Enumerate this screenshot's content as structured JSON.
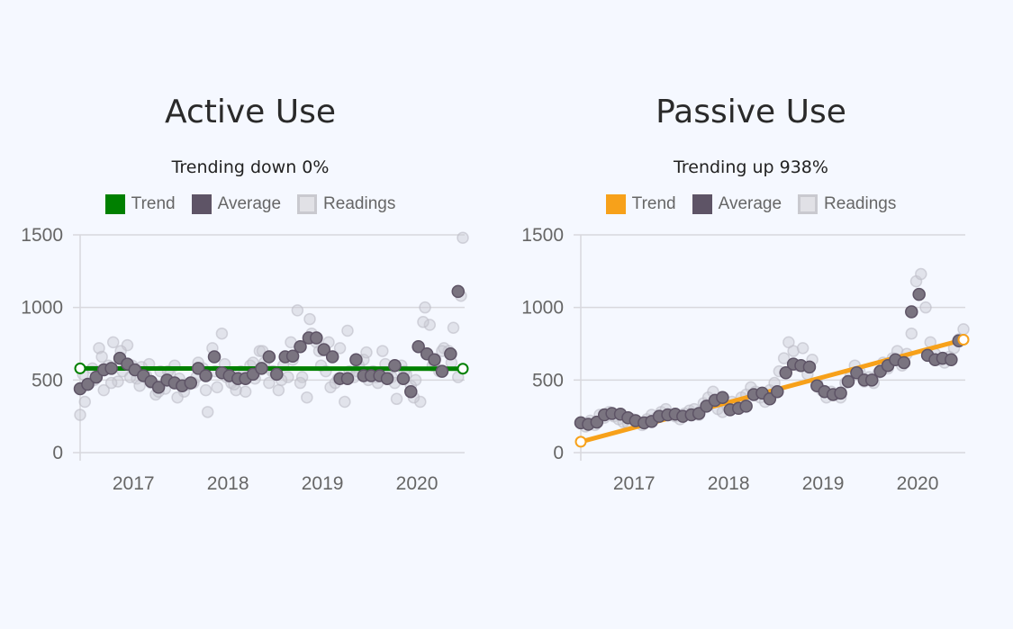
{
  "colors": {
    "average": "#5e5466",
    "readings": "#bdbdc6",
    "grid": "#d8d8dd",
    "background": "#f5f8ff"
  },
  "chart_data": [
    {
      "type": "scatter",
      "title": "Active Use",
      "subtitle": "Trending down 0%",
      "legend": [
        "Trend",
        "Average",
        "Readings"
      ],
      "trend_color": "#008000",
      "ylim": [
        0,
        1500
      ],
      "y_ticks": [
        "0",
        "500",
        "1000",
        "1500"
      ],
      "x_range": [
        2016.55,
        2020.6
      ],
      "x_ticks": [
        {
          "value": 2017,
          "label": "2017"
        },
        {
          "value": 2018,
          "label": "2018"
        },
        {
          "value": 2019,
          "label": "2019"
        },
        {
          "value": 2020,
          "label": "2020"
        }
      ],
      "trend": {
        "x": [
          2016.55,
          2020.6
        ],
        "y": [
          580,
          578
        ]
      },
      "average": {
        "x": [
          2016.55,
          2016.63,
          2016.72,
          2016.8,
          2016.88,
          2016.97,
          2017.05,
          2017.13,
          2017.22,
          2017.3,
          2017.38,
          2017.47,
          2017.55,
          2017.63,
          2017.72,
          2017.8,
          2017.88,
          2017.97,
          2018.05,
          2018.13,
          2018.22,
          2018.3,
          2018.38,
          2018.47,
          2018.55,
          2018.63,
          2018.72,
          2018.8,
          2018.88,
          2018.97,
          2019.05,
          2019.13,
          2019.22,
          2019.3,
          2019.38,
          2019.47,
          2019.55,
          2019.63,
          2019.72,
          2019.8,
          2019.88,
          2019.97,
          2020.05,
          2020.13,
          2020.22,
          2020.3,
          2020.38,
          2020.47,
          2020.55
        ],
        "y": [
          440,
          470,
          520,
          570,
          580,
          650,
          610,
          570,
          530,
          490,
          450,
          500,
          480,
          460,
          480,
          580,
          530,
          660,
          550,
          530,
          510,
          510,
          540,
          580,
          660,
          540,
          660,
          665,
          730,
          790,
          790,
          710,
          660,
          510,
          510,
          640,
          530,
          530,
          530,
          510,
          600,
          510,
          420,
          730,
          680,
          640,
          560,
          680,
          1110
        ]
      },
      "readings": {
        "x": [
          2016.55,
          2016.6,
          2016.65,
          2016.7,
          2016.75,
          2016.8,
          2016.85,
          2016.9,
          2016.95,
          2017.0,
          2017.05,
          2017.1,
          2017.15,
          2017.2,
          2017.25,
          2017.3,
          2017.35,
          2017.4,
          2017.45,
          2017.5,
          2017.55,
          2017.6,
          2017.65,
          2017.7,
          2017.75,
          2017.8,
          2017.85,
          2017.9,
          2017.95,
          2018.0,
          2018.05,
          2018.1,
          2018.15,
          2018.2,
          2018.25,
          2018.3,
          2018.35,
          2018.4,
          2018.45,
          2018.5,
          2018.55,
          2018.6,
          2018.65,
          2018.7,
          2018.75,
          2018.8,
          2018.85,
          2018.9,
          2018.95,
          2019.0,
          2019.05,
          2019.1,
          2019.15,
          2019.2,
          2019.25,
          2019.3,
          2019.35,
          2019.4,
          2019.45,
          2019.5,
          2019.55,
          2019.6,
          2019.65,
          2019.7,
          2019.75,
          2019.8,
          2019.85,
          2019.9,
          2019.95,
          2020.0,
          2020.05,
          2020.1,
          2020.15,
          2020.2,
          2020.25,
          2020.3,
          2020.35,
          2020.4,
          2020.45,
          2020.5,
          2020.55,
          2020.6,
          2016.58,
          2016.68,
          2016.78,
          2016.88,
          2016.98,
          2017.08,
          2017.18,
          2017.28,
          2017.38,
          2017.48,
          2017.58,
          2017.68,
          2017.78,
          2017.88,
          2017.98,
          2018.08,
          2018.18,
          2018.28,
          2018.38,
          2018.48,
          2018.58,
          2018.68,
          2018.78,
          2018.88,
          2018.98,
          2019.08,
          2019.18,
          2019.28,
          2019.38,
          2019.48,
          2019.58,
          2019.68,
          2019.78,
          2019.88,
          2019.98,
          2020.08,
          2020.18,
          2020.28,
          2020.38,
          2020.48,
          2020.58
        ],
        "y": [
          260,
          350,
          480,
          500,
          720,
          430,
          600,
          760,
          490,
          560,
          740,
          600,
          510,
          590,
          530,
          480,
          400,
          560,
          440,
          540,
          600,
          510,
          420,
          470,
          480,
          620,
          580,
          280,
          720,
          450,
          820,
          520,
          480,
          430,
          560,
          420,
          600,
          510,
          700,
          620,
          480,
          560,
          430,
          600,
          520,
          640,
          980,
          520,
          380,
          820,
          760,
          600,
          560,
          450,
          480,
          720,
          350,
          560,
          520,
          600,
          640,
          500,
          560,
          480,
          700,
          540,
          520,
          370,
          600,
          540,
          460,
          500,
          350,
          1000,
          880,
          620,
          560,
          720,
          700,
          860,
          520,
          1480,
          540,
          580,
          660,
          480,
          700,
          520,
          460,
          610,
          420,
          560,
          380,
          470,
          520,
          430,
          560,
          610,
          470,
          540,
          620,
          700,
          560,
          500,
          760,
          480,
          920,
          700,
          760,
          510,
          840,
          560,
          690,
          520,
          610,
          480,
          560,
          380,
          900,
          600,
          700,
          620,
          1080
        ]
      }
    },
    {
      "type": "scatter",
      "title": "Passive Use",
      "subtitle": "Trending up 938%",
      "legend": [
        "Trend",
        "Average",
        "Readings"
      ],
      "trend_color": "#f7a11a",
      "ylim": [
        0,
        1500
      ],
      "y_ticks": [
        "0",
        "500",
        "1000",
        "1500"
      ],
      "x_range": [
        2016.55,
        2020.6
      ],
      "x_ticks": [
        {
          "value": 2017,
          "label": "2017"
        },
        {
          "value": 2018,
          "label": "2018"
        },
        {
          "value": 2019,
          "label": "2019"
        },
        {
          "value": 2020,
          "label": "2020"
        }
      ],
      "trend": {
        "x": [
          2016.55,
          2020.6
        ],
        "y": [
          75,
          778
        ]
      },
      "average": {
        "x": [
          2016.55,
          2016.63,
          2016.72,
          2016.8,
          2016.88,
          2016.97,
          2017.05,
          2017.13,
          2017.22,
          2017.3,
          2017.38,
          2017.47,
          2017.55,
          2017.63,
          2017.72,
          2017.8,
          2017.88,
          2017.97,
          2018.05,
          2018.13,
          2018.22,
          2018.3,
          2018.38,
          2018.47,
          2018.55,
          2018.63,
          2018.72,
          2018.8,
          2018.88,
          2018.97,
          2019.05,
          2019.13,
          2019.22,
          2019.3,
          2019.38,
          2019.47,
          2019.55,
          2019.63,
          2019.72,
          2019.8,
          2019.88,
          2019.97,
          2020.05,
          2020.13,
          2020.22,
          2020.3,
          2020.38,
          2020.47,
          2020.55
        ],
        "y": [
          205,
          195,
          210,
          260,
          270,
          265,
          240,
          220,
          205,
          215,
          250,
          260,
          265,
          250,
          260,
          270,
          320,
          360,
          380,
          295,
          305,
          320,
          400,
          410,
          370,
          420,
          550,
          610,
          600,
          590,
          460,
          420,
          400,
          410,
          490,
          550,
          500,
          500,
          560,
          600,
          640,
          620,
          970,
          1090,
          670,
          640,
          650,
          640,
          770
        ]
      },
      "readings": {
        "x": [
          2016.55,
          2016.6,
          2016.65,
          2016.7,
          2016.75,
          2016.8,
          2016.85,
          2016.9,
          2016.95,
          2017.0,
          2017.05,
          2017.1,
          2017.15,
          2017.2,
          2017.25,
          2017.3,
          2017.35,
          2017.4,
          2017.45,
          2017.5,
          2017.55,
          2017.6,
          2017.65,
          2017.7,
          2017.75,
          2017.8,
          2017.85,
          2017.9,
          2017.95,
          2018.0,
          2018.05,
          2018.1,
          2018.15,
          2018.2,
          2018.25,
          2018.3,
          2018.35,
          2018.4,
          2018.45,
          2018.5,
          2018.55,
          2018.6,
          2018.65,
          2018.7,
          2018.75,
          2018.8,
          2018.85,
          2018.9,
          2018.95,
          2019.0,
          2019.05,
          2019.1,
          2019.15,
          2019.2,
          2019.25,
          2019.3,
          2019.35,
          2019.4,
          2019.45,
          2019.5,
          2019.55,
          2019.6,
          2019.65,
          2019.7,
          2019.75,
          2019.8,
          2019.85,
          2019.9,
          2019.95,
          2020.0,
          2020.05,
          2020.1,
          2020.15,
          2020.2,
          2020.25,
          2020.3,
          2020.35,
          2020.4,
          2020.45,
          2020.5,
          2020.55,
          2020.6
        ],
        "y": [
          210,
          180,
          220,
          190,
          260,
          240,
          280,
          250,
          230,
          210,
          200,
          230,
          210,
          190,
          230,
          260,
          240,
          280,
          300,
          260,
          250,
          230,
          270,
          290,
          300,
          260,
          340,
          380,
          420,
          300,
          280,
          320,
          350,
          310,
          380,
          400,
          450,
          420,
          380,
          350,
          430,
          480,
          560,
          650,
          760,
          700,
          600,
          720,
          540,
          640,
          480,
          430,
          380,
          420,
          400,
          380,
          480,
          520,
          600,
          560,
          490,
          520,
          480,
          550,
          620,
          580,
          650,
          700,
          600,
          680,
          820,
          1180,
          1230,
          1000,
          760,
          680,
          640,
          620,
          660,
          720,
          780,
          850
        ]
      }
    }
  ]
}
